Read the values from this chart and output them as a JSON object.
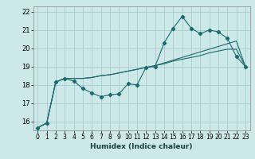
{
  "title": "",
  "xlabel": "Humidex (Indice chaleur)",
  "ylabel": "",
  "bg_color": "#cce8e8",
  "grid_color": "#aacccc",
  "line_color": "#1a6b6b",
  "xlim": [
    -0.5,
    23.5
  ],
  "ylim": [
    15.5,
    22.3
  ],
  "xticks": [
    0,
    1,
    2,
    3,
    4,
    5,
    6,
    7,
    8,
    9,
    10,
    11,
    12,
    13,
    14,
    15,
    16,
    17,
    18,
    19,
    20,
    21,
    22,
    23
  ],
  "yticks": [
    16,
    17,
    18,
    19,
    20,
    21,
    22
  ],
  "line1_x": [
    0,
    1,
    2,
    3,
    4,
    5,
    6,
    7,
    8,
    9,
    10,
    11,
    12,
    13,
    14,
    15,
    16,
    17,
    18,
    19,
    20,
    21,
    22,
    23
  ],
  "line1_y": [
    15.65,
    15.9,
    18.15,
    18.35,
    18.2,
    17.8,
    17.55,
    17.35,
    17.45,
    17.5,
    18.05,
    18.0,
    18.95,
    19.0,
    20.3,
    21.1,
    21.75,
    21.1,
    20.8,
    21.0,
    20.9,
    20.55,
    19.55,
    19.0
  ],
  "line2_x": [
    0,
    1,
    2,
    3,
    4,
    5,
    6,
    7,
    8,
    9,
    10,
    11,
    12,
    13,
    14,
    15,
    16,
    17,
    18,
    19,
    20,
    21,
    22,
    23
  ],
  "line2_y": [
    15.65,
    15.9,
    18.15,
    18.35,
    18.35,
    18.35,
    18.4,
    18.5,
    18.55,
    18.65,
    18.75,
    18.85,
    18.95,
    19.05,
    19.15,
    19.3,
    19.4,
    19.5,
    19.6,
    19.75,
    19.85,
    19.95,
    19.95,
    19.0
  ],
  "line3_x": [
    0,
    1,
    2,
    3,
    4,
    5,
    6,
    7,
    8,
    9,
    10,
    11,
    12,
    13,
    14,
    15,
    16,
    17,
    18,
    19,
    20,
    21,
    22,
    23
  ],
  "line3_y": [
    15.65,
    15.9,
    18.15,
    18.35,
    18.35,
    18.35,
    18.4,
    18.5,
    18.55,
    18.65,
    18.75,
    18.85,
    18.95,
    19.05,
    19.2,
    19.35,
    19.5,
    19.65,
    19.8,
    19.95,
    20.1,
    20.25,
    20.4,
    19.0
  ],
  "xlabel_fontsize": 6.5,
  "tick_fontsize": 5.5
}
